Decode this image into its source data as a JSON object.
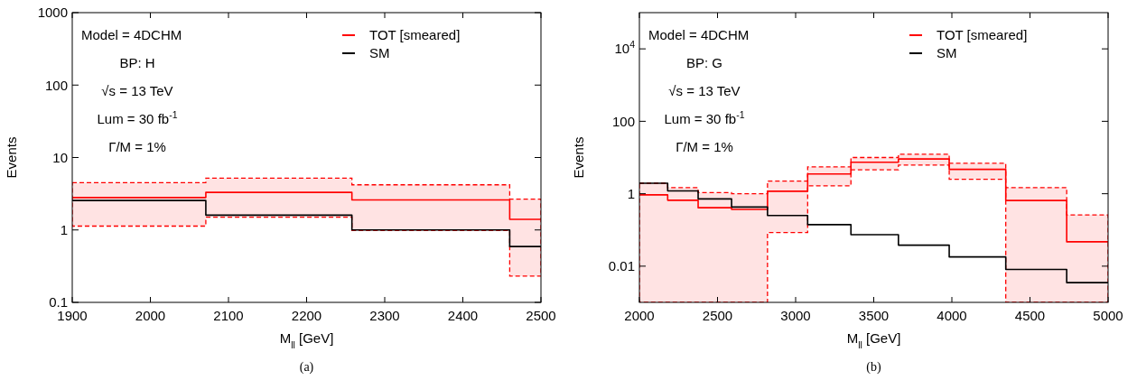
{
  "chart_data": [
    {
      "type": "step",
      "xlabel": "M$_{ll}$  [GeV]",
      "ylabel": "Events",
      "log": "y",
      "legend": "top right",
      "grid": false,
      "x": [
        1900,
        2071,
        2258,
        2460,
        2500
      ],
      "series": [
        {
          "name": "TOT [smeared]",
          "color": "#ff0000",
          "values": [
            2.8,
            3.3,
            2.6,
            1.4,
            1.4
          ],
          "lower": [
            1.13,
            1.5,
            0.98,
            0.23,
            0.23
          ],
          "upper": [
            4.5,
            5.2,
            4.2,
            2.66,
            2.66
          ]
        },
        {
          "name": "SM",
          "color": "#000000",
          "values": [
            2.55,
            1.6,
            1.0,
            0.59,
            0.59
          ]
        }
      ],
      "xlim": [
        1900,
        2500
      ],
      "xticks": [
        1900,
        2000,
        2100,
        2200,
        2300,
        2400,
        2500
      ],
      "ylim": [
        0.1,
        1000
      ],
      "yticks": [
        0.1,
        1,
        10,
        100,
        1000
      ],
      "annotations": [
        "Model = 4DCHM",
        "BP: H",
        "√s = 13 TeV",
        "Lum = 30 fb$^{-1}$",
        "Γ/M = 1%",
        "(a)"
      ]
    },
    {
      "type": "step",
      "xlabel": "M$_{ll}$  [GeV]",
      "ylabel": "Events",
      "log": "y",
      "legend": "top right",
      "grid": false,
      "x": [
        2000,
        2181,
        2376,
        2590,
        2820,
        3077,
        3354,
        3658,
        3983,
        4345,
        4735,
        5000
      ],
      "series": [
        {
          "name": "TOT [smeared]",
          "color": "#ff0000",
          "values": [
            0.93,
            0.66,
            0.41,
            0.37,
            1.17,
            3.5,
            7.4,
            9.1,
            4.7,
            0.65,
            0.047,
            0.047
          ],
          "lower": [
            0.001,
            0.001,
            0.001,
            0.001,
            0.085,
            1.66,
            4.6,
            6.2,
            2.5,
            0.001,
            0.001,
            0.001
          ],
          "upper": [
            1.95,
            1.48,
            1.07,
            1.0,
            2.24,
            5.5,
            10,
            12.3,
            6.9,
            1.48,
            0.26,
            0.26
          ]
        },
        {
          "name": "SM",
          "color": "#000000",
          "values": [
            1.95,
            1.2,
            0.72,
            0.43,
            0.25,
            0.14,
            0.074,
            0.038,
            0.018,
            0.0081,
            0.0035,
            0.0035
          ]
        }
      ],
      "xlim": [
        2000,
        5000
      ],
      "xticks": [
        2000,
        2500,
        3000,
        3500,
        4000,
        4500,
        5000
      ],
      "ylim": [
        0.001,
        100000
      ],
      "yticks": [
        0.01,
        1,
        100,
        {
          "value": 10000,
          "label": "10$^{4}$"
        }
      ],
      "annotations": [
        "Model = 4DCHM",
        "BP: G",
        "√s = 13 TeV",
        "Lum = 30 fb$^{-1}$",
        "Γ/M = 1%",
        "(b)"
      ]
    }
  ]
}
